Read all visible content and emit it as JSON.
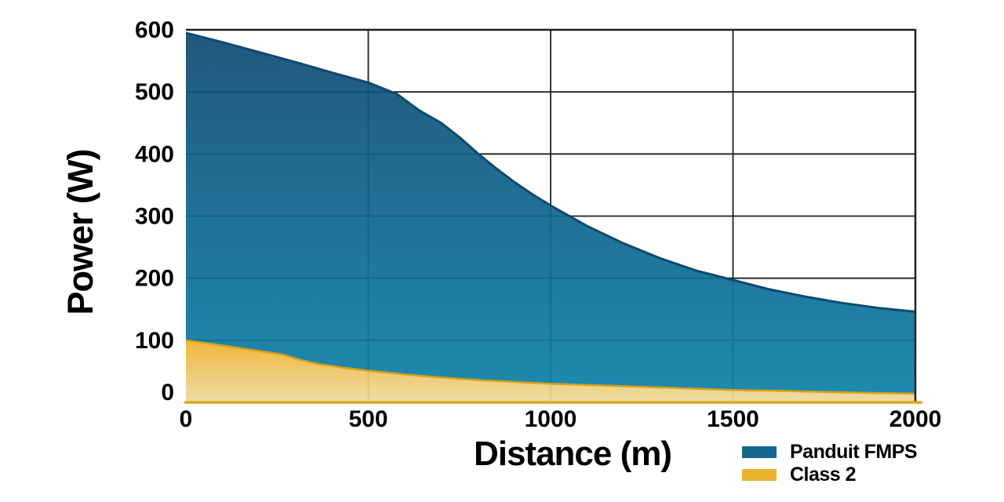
{
  "chart_data": {
    "type": "area",
    "title": "",
    "xlabel": "Distance (m)",
    "ylabel": "Power (W)",
    "xlim": [
      0,
      2000
    ],
    "ylim": [
      0,
      600
    ],
    "x_ticks": [
      "0",
      "500",
      "1000",
      "1500",
      "2000"
    ],
    "x_tick_values": [
      0,
      500,
      1000,
      1500,
      2000
    ],
    "y_ticks": [
      "0",
      "100",
      "200",
      "300",
      "400",
      "500",
      "600"
    ],
    "y_tick_values": [
      0,
      100,
      200,
      300,
      400,
      500,
      600
    ],
    "grid": true,
    "grid_color": "#1f1f1f",
    "baseline_color": "#dca81f",
    "legend_position": "bottom-right",
    "series": [
      {
        "name": "Panduit FMPS",
        "color": "#156890",
        "gradient_top": "#114b73",
        "gradient_bottom": "#0d81a8",
        "edge_color": "#0d4a6e",
        "points": [
          [
            0,
            595
          ],
          [
            100,
            580
          ],
          [
            200,
            564
          ],
          [
            300,
            548
          ],
          [
            400,
            531
          ],
          [
            500,
            515
          ],
          [
            580,
            496
          ],
          [
            640,
            470
          ],
          [
            700,
            450
          ],
          [
            750,
            427
          ],
          [
            800,
            401
          ],
          [
            850,
            377
          ],
          [
            900,
            355
          ],
          [
            950,
            335
          ],
          [
            1000,
            317
          ],
          [
            1100,
            284
          ],
          [
            1200,
            256
          ],
          [
            1300,
            232
          ],
          [
            1400,
            212
          ],
          [
            1500,
            197
          ],
          [
            1600,
            182
          ],
          [
            1700,
            170
          ],
          [
            1800,
            160
          ],
          [
            1900,
            152
          ],
          [
            2000,
            146
          ]
        ]
      },
      {
        "name": "Class 2",
        "color": "#eab32f",
        "gradient_top": "#eeb12c",
        "gradient_bottom": "#edda9f",
        "edge_color": "#d8a01d",
        "points": [
          [
            0,
            100
          ],
          [
            130,
            89
          ],
          [
            265,
            77
          ],
          [
            310,
            69
          ],
          [
            360,
            62
          ],
          [
            430,
            56
          ],
          [
            500,
            51
          ],
          [
            600,
            45
          ],
          [
            700,
            40
          ],
          [
            800,
            36
          ],
          [
            900,
            33
          ],
          [
            1000,
            30
          ],
          [
            1200,
            26
          ],
          [
            1400,
            22
          ],
          [
            1500,
            20
          ],
          [
            1600,
            19
          ],
          [
            1800,
            16
          ],
          [
            2000,
            14
          ]
        ]
      }
    ]
  }
}
